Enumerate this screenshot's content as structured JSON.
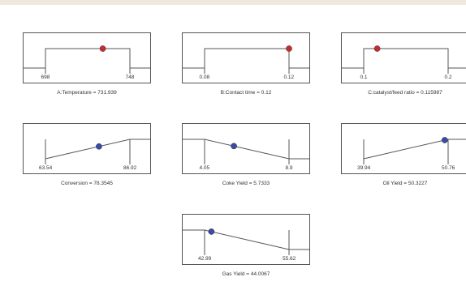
{
  "panels": [
    {
      "kind": "factor",
      "low_label": "698",
      "high_label": "748",
      "caption": "A:Temperature = 731.939",
      "low": 698,
      "high": 748,
      "value": 731.939,
      "dot_color": "#cc2a2a"
    },
    {
      "kind": "factor",
      "low_label": "0.08",
      "high_label": "0.12",
      "caption": "B:Contact time = 0.12",
      "low": 0.08,
      "high": 0.12,
      "value": 0.12,
      "dot_color": "#cc2a2a"
    },
    {
      "kind": "factor",
      "low_label": "0.1",
      "high_label": "0.2",
      "caption": "C:catalyst/feed ratio = 0.115987",
      "low": 0.1,
      "high": 0.2,
      "value": 0.115987,
      "dot_color": "#cc2a2a"
    },
    {
      "kind": "maximize",
      "low_label": "63.54",
      "high_label": "86.92",
      "caption": "Conversion = 78.3545",
      "low": 63.54,
      "high": 86.92,
      "value": 78.3545,
      "dot_color": "#3a4aa8"
    },
    {
      "kind": "minimize",
      "low_label": "4.05",
      "high_label": "8.9",
      "caption": "Coke Yield = 5.7333",
      "low": 4.05,
      "high": 8.9,
      "value": 5.7333,
      "dot_color": "#3a4aa8"
    },
    {
      "kind": "maximize",
      "low_label": "39.94",
      "high_label": "50.76",
      "caption": "Oil Yield = 50.3227",
      "low": 39.94,
      "high": 50.76,
      "value": 50.3227,
      "dot_color": "#3a4aa8"
    },
    {
      "kind": "minimize",
      "low_label": "42.99",
      "high_label": "55.62",
      "caption": "Gas Yield = 44.0067",
      "low": 42.99,
      "high": 55.62,
      "value": 44.0067,
      "dot_color": "#3a4aa8"
    }
  ]
}
